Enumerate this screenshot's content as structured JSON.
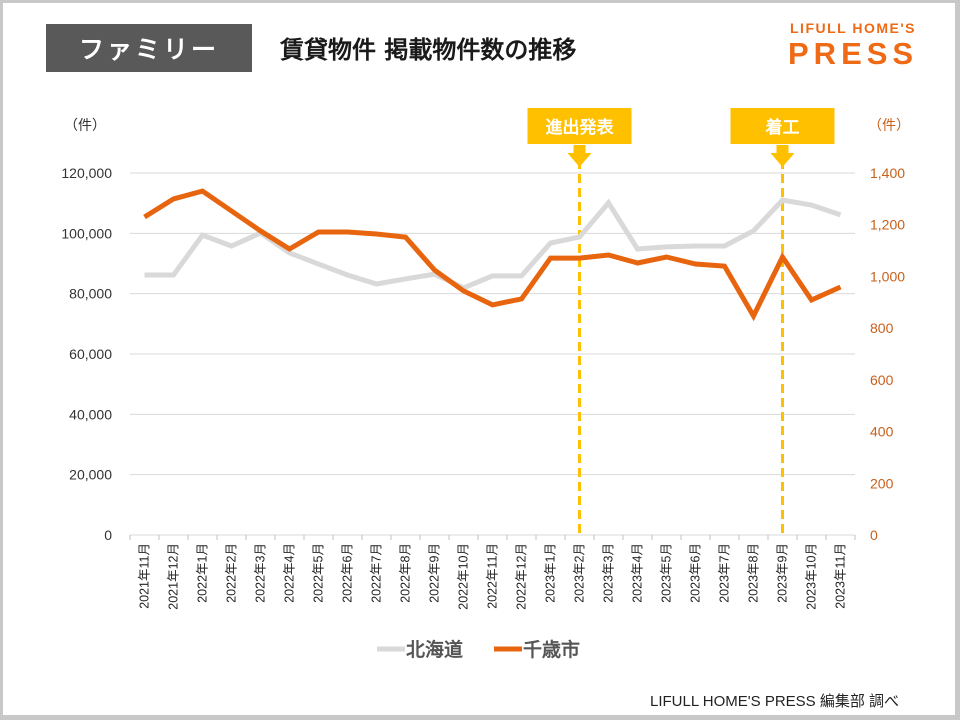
{
  "header": {
    "badge": "ファミリー",
    "title": "賃貸物件 掲載物件数の推移",
    "logo_line1": "LIFULL HOME'S",
    "logo_line2": "PRESS"
  },
  "source": "LIFULL HOME'S PRESS 編集部 調べ",
  "colors": {
    "hokkaido": "#d9d9d9",
    "chitose": "#e8650f",
    "annotation": "#ffc000",
    "grid": "#d9d9d9"
  },
  "chart_data": {
    "type": "line",
    "title": "賃貸物件 掲載物件数の推移",
    "categories": [
      "2021年11月",
      "2021年12月",
      "2022年1月",
      "2022年2月",
      "2022年3月",
      "2022年4月",
      "2022年5月",
      "2022年6月",
      "2022年7月",
      "2022年8月",
      "2022年9月",
      "2022年10月",
      "2022年11月",
      "2022年12月",
      "2023年1月",
      "2023年2月",
      "2023年3月",
      "2023年4月",
      "2023年5月",
      "2023年6月",
      "2023年7月",
      "2023年8月",
      "2023年9月",
      "2023年10月",
      "2023年11月"
    ],
    "y_left": {
      "label": "（件）",
      "lim": [
        0,
        120000
      ],
      "ticks": [
        "0",
        "20,000",
        "40,000",
        "60,000",
        "80,000",
        "100,000",
        "120,000"
      ],
      "tick_values": [
        0,
        20000,
        40000,
        60000,
        80000,
        100000,
        120000
      ]
    },
    "y_right": {
      "label": "（件）",
      "lim": [
        0,
        1400
      ],
      "ticks": [
        "0",
        "200",
        "400",
        "600",
        "800",
        "1,000",
        "1,200",
        "1,400"
      ],
      "tick_values": [
        0,
        200,
        400,
        600,
        800,
        1000,
        1200,
        1400
      ]
    },
    "grid": true,
    "legend_position": "bottom",
    "series": [
      {
        "name": "北海道",
        "axis": "left",
        "color": "#d9d9d9",
        "values": [
          86200,
          86200,
          99400,
          95800,
          100100,
          93500,
          89800,
          86200,
          83200,
          84900,
          86500,
          81900,
          85900,
          85900,
          96800,
          98800,
          110100,
          94800,
          95500,
          95800,
          95800,
          100800,
          111000,
          109400,
          106100
        ]
      },
      {
        "name": "千歳市",
        "axis": "right",
        "color": "#e8650f",
        "values": [
          1230,
          1300,
          1330,
          1253,
          1176,
          1106,
          1172,
          1172,
          1164,
          1152,
          1025,
          944,
          890,
          913,
          1071,
          1071,
          1083,
          1052,
          1075,
          1048,
          1040,
          847,
          1075,
          909,
          959
        ]
      }
    ],
    "annotations": [
      {
        "label": "進出発表",
        "category": "2023年2月"
      },
      {
        "label": "着工",
        "category": "2023年9月"
      }
    ]
  }
}
